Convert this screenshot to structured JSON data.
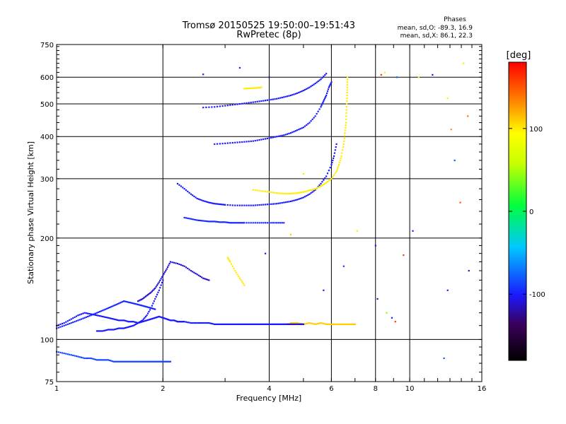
{
  "chart_data": {
    "type": "scatter",
    "title": "Tromsø 20150525 19:50:00–19:51:43",
    "subtitle": "RwPretec (8p)",
    "xlabel": "Frequency [MHz]",
    "ylabel": "Stationary phase Virtual Height [km]",
    "xscale": "log",
    "yscale": "log",
    "xlim": [
      1,
      16
    ],
    "ylim": [
      75,
      750
    ],
    "x_ticks": [
      1,
      2,
      4,
      6,
      8,
      10,
      16
    ],
    "x_tick_labels": [
      "1",
      "2",
      "4",
      "6",
      "8",
      "10",
      "16"
    ],
    "y_ticks": [
      75,
      100,
      200,
      300,
      400,
      500,
      600,
      750
    ],
    "y_tick_labels": [
      "75",
      "100",
      "200",
      "300",
      "400",
      "500",
      "600",
      "750"
    ],
    "x_grid": [
      1,
      2,
      4,
      6,
      8,
      10,
      16
    ],
    "y_grid": [
      100,
      200,
      300,
      400,
      500,
      600,
      750
    ],
    "grid": true,
    "stats": {
      "heading": "Phases",
      "line1": "mean, sd,O: -89.3, 16.9",
      "line2": "mean, sd,X:  86.1, 22.3"
    },
    "colorbar": {
      "label": "[deg]",
      "range": [
        -180,
        180
      ],
      "ticks": [
        100,
        0,
        -100
      ],
      "tick_labels": [
        "100",
        "0",
        "-100"
      ]
    },
    "traces": [
      {
        "name": "",
        "phase": -100,
        "f": [
          1.0,
          1.05,
          1.1,
          1.15,
          1.2,
          1.25,
          1.3,
          1.35,
          1.4,
          1.45,
          1.5,
          1.55,
          1.6,
          1.65,
          1.7,
          1.75,
          1.8,
          1.85,
          1.9,
          1.95,
          2.0,
          2.05,
          2.1,
          2.15,
          2.2,
          2.25,
          2.3,
          2.4,
          2.5,
          2.6,
          2.7,
          2.8,
          2.9,
          3.0,
          3.1,
          3.2,
          3.3,
          3.4,
          3.5,
          3.6,
          3.7,
          3.8,
          3.9,
          4.0,
          4.1,
          4.2,
          4.3,
          4.4,
          4.5,
          4.6
        ],
        "h": [
          110,
          112,
          115,
          118,
          120,
          119,
          118,
          117,
          116,
          115,
          114,
          114,
          113,
          113,
          112,
          113,
          114,
          115,
          116,
          117,
          116,
          115,
          114,
          114,
          113,
          113,
          113,
          112,
          112,
          112,
          112,
          111,
          111,
          111,
          111,
          111,
          111,
          111,
          111,
          111,
          111,
          111,
          111,
          111,
          111,
          111,
          111,
          111,
          111,
          111
        ]
      },
      {
        "name": "",
        "phase": -95,
        "f": [
          1.0,
          1.05,
          1.1,
          1.15,
          1.2,
          1.25,
          1.3,
          1.35,
          1.4,
          1.45,
          1.5,
          1.55,
          1.6,
          1.65,
          1.7,
          1.75,
          1.8,
          1.85,
          1.9
        ],
        "h": [
          108,
          110,
          112,
          114,
          116,
          118,
          120,
          122,
          124,
          126,
          128,
          130,
          129,
          128,
          127,
          126,
          125,
          124,
          123
        ]
      },
      {
        "name": "",
        "phase": -100,
        "f": [
          1.3,
          1.35,
          1.4,
          1.45,
          1.5,
          1.55,
          1.6,
          1.65,
          1.7,
          1.75,
          1.8,
          1.85,
          1.9,
          1.95,
          2.0
        ],
        "h": [
          106,
          106,
          107,
          107,
          108,
          108,
          109,
          110,
          112,
          114,
          118,
          124,
          132,
          140,
          150
        ]
      },
      {
        "name": "",
        "phase": -110,
        "f": [
          1.7,
          1.75,
          1.8,
          1.85,
          1.9,
          1.95,
          2.0,
          2.05,
          2.1,
          2.2,
          2.3,
          2.4,
          2.5,
          2.6,
          2.7
        ],
        "h": [
          130,
          132,
          135,
          138,
          142,
          148,
          155,
          162,
          170,
          168,
          165,
          160,
          156,
          152,
          150
        ]
      },
      {
        "name": "",
        "phase": -85,
        "f": [
          1.0,
          1.05,
          1.1,
          1.15,
          1.2,
          1.25,
          1.3,
          1.35,
          1.4,
          1.45,
          1.5,
          1.55,
          1.6,
          1.65,
          1.7,
          1.75,
          1.8,
          1.85,
          1.9,
          1.95,
          2.0,
          2.05,
          2.1
        ],
        "h": [
          92,
          91,
          90,
          89,
          88,
          88,
          87,
          87,
          87,
          86,
          86,
          86,
          86,
          86,
          86,
          86,
          86,
          86,
          86,
          86,
          86,
          86,
          86
        ]
      },
      {
        "name": "",
        "phase": -100,
        "f": [
          2.2,
          2.3,
          2.4,
          2.5,
          2.6,
          2.7,
          2.8,
          2.9,
          3.0,
          3.2,
          3.4,
          3.6,
          3.8,
          4.0,
          4.2,
          4.4,
          4.6,
          4.8,
          5.0,
          5.2,
          5.4,
          5.6,
          5.8,
          6.0,
          6.1,
          6.2
        ],
        "h": [
          290,
          280,
          270,
          262,
          258,
          255,
          253,
          252,
          251,
          250,
          250,
          250,
          251,
          252,
          253,
          255,
          257,
          260,
          264,
          270,
          278,
          290,
          305,
          330,
          350,
          380
        ]
      },
      {
        "name": "",
        "phase": -95,
        "f": [
          2.3,
          2.4,
          2.5,
          2.6,
          2.7,
          2.8,
          2.9,
          3.0,
          3.1,
          3.2,
          3.3,
          3.4,
          3.6,
          3.8,
          4.0,
          4.2,
          4.4
        ],
        "h": [
          230,
          228,
          226,
          225,
          224,
          224,
          223,
          223,
          222,
          222,
          222,
          222,
          222,
          222,
          222,
          222,
          222
        ]
      },
      {
        "name": "",
        "phase": 100,
        "f": [
          3.6,
          3.8,
          4.0,
          4.2,
          4.4,
          4.6,
          4.8,
          5.0,
          5.2,
          5.4,
          5.6,
          5.8,
          6.0,
          6.2,
          6.3,
          6.4,
          6.5,
          6.55,
          6.6,
          6.62,
          6.64,
          6.65,
          6.66
        ],
        "h": [
          278,
          276,
          274,
          272,
          271,
          271,
          272,
          274,
          277,
          280,
          285,
          292,
          300,
          315,
          330,
          350,
          380,
          410,
          440,
          480,
          520,
          560,
          600
        ]
      },
      {
        "name": "",
        "phase": -100,
        "f": [
          2.8,
          3.0,
          3.2,
          3.4,
          3.6,
          3.8,
          4.0,
          4.2,
          4.4,
          4.6,
          4.8,
          5.0,
          5.2,
          5.4,
          5.6,
          5.7,
          5.8,
          5.9,
          6.0
        ],
        "h": [
          380,
          382,
          384,
          386,
          388,
          392,
          396,
          400,
          404,
          410,
          418,
          426,
          440,
          460,
          490,
          510,
          530,
          560,
          580
        ]
      },
      {
        "name": "",
        "phase": -100,
        "f": [
          2.6,
          2.8,
          3.0,
          3.2,
          3.4,
          3.6,
          3.8,
          4.0,
          4.2,
          4.4,
          4.6,
          4.8,
          5.0,
          5.2,
          5.4,
          5.6,
          5.8
        ],
        "h": [
          488,
          490,
          494,
          498,
          502,
          506,
          510,
          514,
          518,
          524,
          530,
          538,
          548,
          560,
          575,
          592,
          615
        ]
      },
      {
        "name": "",
        "phase": 100,
        "f": [
          3.4,
          3.5,
          3.6,
          3.7,
          3.8
        ],
        "h": [
          555,
          556,
          557,
          558,
          560
        ]
      },
      {
        "name": "",
        "phase": 100,
        "f": [
          3.05,
          3.1,
          3.2,
          3.3,
          3.4
        ],
        "h": [
          175,
          170,
          160,
          152,
          145
        ]
      },
      {
        "name": "",
        "phase": 110,
        "f": [
          4.6,
          4.8,
          5.0,
          5.2,
          5.4,
          5.6,
          5.8,
          6.0,
          6.2,
          6.4,
          6.6,
          6.8,
          7.0
        ],
        "h": [
          112,
          112,
          111,
          112,
          111,
          112,
          111,
          111,
          111,
          111,
          111,
          111,
          111
        ]
      },
      {
        "name": "",
        "phase": -110,
        "f": [
          4.5,
          4.6,
          4.7,
          4.8,
          4.9,
          5.0
        ],
        "h": [
          111,
          111,
          111,
          111,
          111,
          111
        ]
      }
    ],
    "scattered_points": [
      {
        "f": 8.3,
        "h": 610,
        "phase": 160
      },
      {
        "f": 8.5,
        "h": 620,
        "phase": 100
      },
      {
        "f": 9.2,
        "h": 600,
        "phase": -80
      },
      {
        "f": 10.6,
        "h": 600,
        "phase": 100
      },
      {
        "f": 11.6,
        "h": 610,
        "phase": -100
      },
      {
        "f": 12.8,
        "h": 520,
        "phase": 100
      },
      {
        "f": 13.1,
        "h": 420,
        "phase": 130
      },
      {
        "f": 13.4,
        "h": 340,
        "phase": -80
      },
      {
        "f": 14.2,
        "h": 660,
        "phase": 100
      },
      {
        "f": 14.6,
        "h": 460,
        "phase": 140
      },
      {
        "f": 8.6,
        "h": 120,
        "phase": 40
      },
      {
        "f": 8.9,
        "h": 116,
        "phase": -100
      },
      {
        "f": 9.1,
        "h": 113,
        "phase": 160
      },
      {
        "f": 12.5,
        "h": 88,
        "phase": -80
      },
      {
        "f": 12.8,
        "h": 140,
        "phase": -100
      },
      {
        "f": 8.1,
        "h": 132,
        "phase": -120
      },
      {
        "f": 7.1,
        "h": 210,
        "phase": 100
      },
      {
        "f": 3.3,
        "h": 640,
        "phase": -100
      },
      {
        "f": 2.6,
        "h": 612,
        "phase": -100
      },
      {
        "f": 4.0,
        "h": 600,
        "phase": -110
      },
      {
        "f": 5.0,
        "h": 310,
        "phase": 100
      },
      {
        "f": 3.9,
        "h": 180,
        "phase": -100
      },
      {
        "f": 4.6,
        "h": 205,
        "phase": 110
      },
      {
        "f": 5.7,
        "h": 140,
        "phase": -100
      },
      {
        "f": 6.5,
        "h": 165,
        "phase": -90
      },
      {
        "f": 10.2,
        "h": 210,
        "phase": -100
      },
      {
        "f": 13.9,
        "h": 255,
        "phase": 150
      },
      {
        "f": 14.7,
        "h": 160,
        "phase": -110
      },
      {
        "f": 9.6,
        "h": 178,
        "phase": 160
      },
      {
        "f": 8.0,
        "h": 190,
        "phase": -100
      }
    ],
    "legend": "none"
  }
}
